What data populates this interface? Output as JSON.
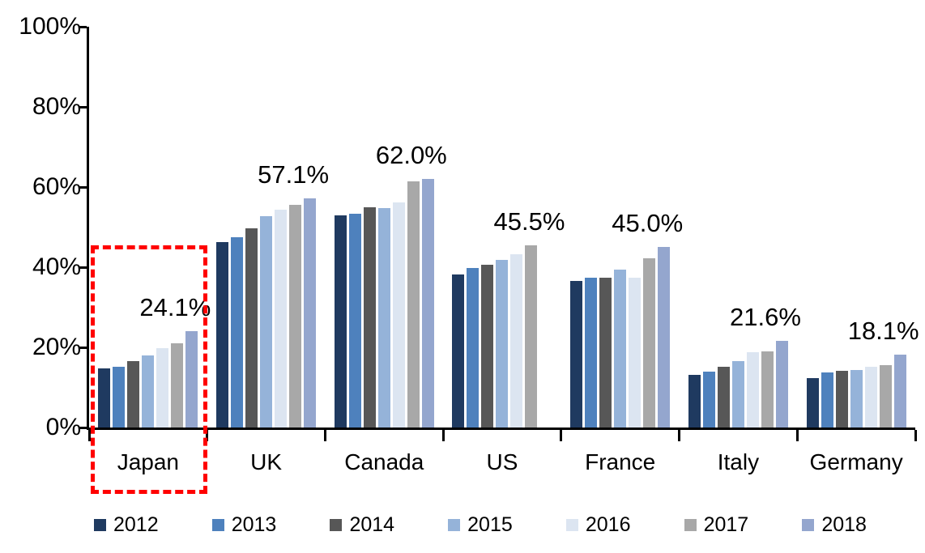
{
  "chart_data": {
    "type": "bar",
    "title": "",
    "xlabel": "",
    "ylabel": "",
    "ylim": [
      0,
      100
    ],
    "grid": false,
    "legend_position": "bottom",
    "y_ticks": [
      "0%",
      "20%",
      "40%",
      "60%",
      "80%",
      "100%"
    ],
    "y_tick_values": [
      0,
      20,
      40,
      60,
      80,
      100
    ],
    "categories": [
      "Japan",
      "UK",
      "Canada",
      "US",
      "France",
      "Italy",
      "Germany"
    ],
    "series": [
      {
        "name": "2012",
        "color": "#1F3A60",
        "values": [
          14.8,
          46.2,
          53.0,
          38.1,
          36.5,
          13.2,
          12.4
        ]
      },
      {
        "name": "2013",
        "color": "#4E81BD",
        "values": [
          15.1,
          47.5,
          53.4,
          39.9,
          37.4,
          13.9,
          13.7
        ]
      },
      {
        "name": "2014",
        "color": "#575757",
        "values": [
          16.6,
          49.6,
          54.9,
          40.7,
          37.4,
          15.1,
          14.1
        ]
      },
      {
        "name": "2015",
        "color": "#95B3D9",
        "values": [
          17.9,
          52.8,
          54.7,
          41.9,
          39.3,
          16.5,
          14.4
        ]
      },
      {
        "name": "2016",
        "color": "#DCE5F1",
        "values": [
          19.8,
          54.4,
          56.2,
          43.2,
          37.3,
          18.7,
          15.1
        ]
      },
      {
        "name": "2017",
        "color": "#A8A8A8",
        "values": [
          21.1,
          55.5,
          61.4,
          45.5,
          42.2,
          18.9,
          15.6
        ]
      },
      {
        "name": "2018",
        "color": "#94A6CE",
        "values": [
          24.1,
          57.1,
          62.0,
          null,
          45.0,
          21.6,
          18.1
        ]
      }
    ],
    "annotations": [
      {
        "category": "Japan",
        "text": "24.1%"
      },
      {
        "category": "UK",
        "text": "57.1%"
      },
      {
        "category": "Canada",
        "text": "62.0%"
      },
      {
        "category": "US",
        "text": "45.5%"
      },
      {
        "category": "France",
        "text": "45.0%"
      },
      {
        "category": "Italy",
        "text": "21.6%"
      },
      {
        "category": "Germany",
        "text": "18.1%"
      }
    ],
    "highlight": {
      "category": "Japan",
      "shape": "dashed-rectangle",
      "color": "#FF0000"
    }
  },
  "legend": {
    "items": [
      {
        "label": "2012",
        "color": "#1F3A60"
      },
      {
        "label": "2013",
        "color": "#4E81BD"
      },
      {
        "label": "2014",
        "color": "#575757"
      },
      {
        "label": "2015",
        "color": "#95B3D9"
      },
      {
        "label": "2016",
        "color": "#DCE5F1"
      },
      {
        "label": "2017",
        "color": "#A8A8A8"
      },
      {
        "label": "2018",
        "color": "#94A6CE"
      }
    ]
  }
}
